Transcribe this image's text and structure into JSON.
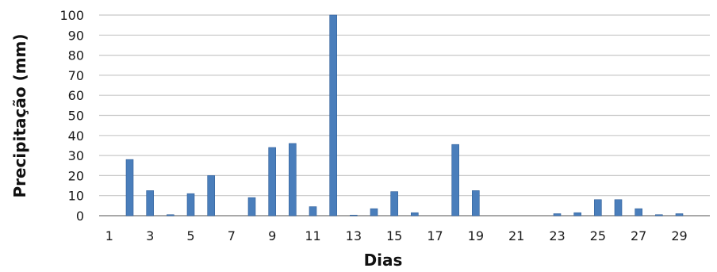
{
  "chart_data": {
    "type": "bar",
    "xlabel": "Dias",
    "ylabel": "Precipitação (mm)",
    "ylim": [
      0,
      100
    ],
    "y_ticks": [
      0,
      10,
      20,
      30,
      40,
      50,
      60,
      70,
      80,
      90,
      100
    ],
    "x_tick_labels": [
      "1",
      "3",
      "5",
      "7",
      "9",
      "11",
      "13",
      "15",
      "17",
      "19",
      "21",
      "23",
      "25",
      "27",
      "29"
    ],
    "grid": true,
    "bar_color": "#4a7ebb",
    "categories": [
      "1",
      "2",
      "3",
      "4",
      "5",
      "6",
      "7",
      "8",
      "9",
      "10",
      "11",
      "12",
      "13",
      "14",
      "15",
      "16",
      "17",
      "18",
      "19",
      "20",
      "21",
      "22",
      "23",
      "24",
      "25",
      "26",
      "27",
      "28",
      "29",
      "30"
    ],
    "values": [
      0,
      28,
      12.5,
      0.5,
      11,
      20,
      0,
      9,
      34,
      36,
      4.5,
      100,
      0.3,
      3.5,
      12,
      1.5,
      0,
      35.5,
      12.5,
      0,
      0,
      0,
      1,
      1.5,
      8,
      8,
      3.5,
      0.5,
      1,
      0
    ]
  }
}
